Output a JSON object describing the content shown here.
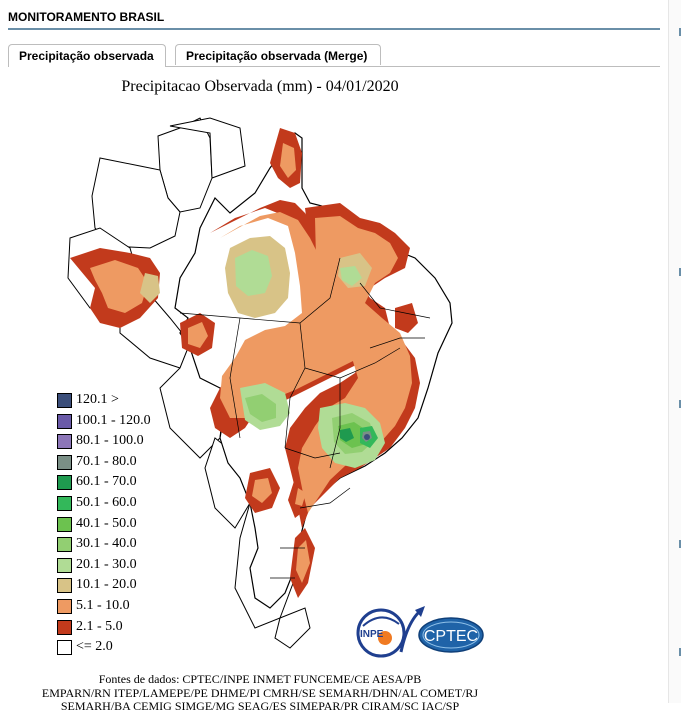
{
  "header": {
    "title": "MONITORAMENTO BRASIL"
  },
  "tabs": [
    {
      "label": "Precipitação observada",
      "active": true
    },
    {
      "label": "Precipitação observada (Merge)",
      "active": false
    }
  ],
  "map": {
    "title": "Precipitacao Observada (mm) - 04/01/2020"
  },
  "legend": {
    "items": [
      {
        "label": "120.1 >",
        "color": "#3b4e7a"
      },
      {
        "label": "100.1 - 120.0",
        "color": "#6a5aa8"
      },
      {
        "label": "80.1 - 100.0",
        "color": "#8c76b8"
      },
      {
        "label": "70.1 - 80.0",
        "color": "#7a8f86"
      },
      {
        "label": "60.1 - 70.0",
        "color": "#1f9a4f"
      },
      {
        "label": "50.1 - 60.0",
        "color": "#33b85a"
      },
      {
        "label": "40.1 - 50.0",
        "color": "#6cc24f"
      },
      {
        "label": "30.1 - 40.0",
        "color": "#92cf72"
      },
      {
        "label": "20.1 - 30.0",
        "color": "#b0dc95"
      },
      {
        "label": "10.1 - 20.0",
        "color": "#d8c387"
      },
      {
        "label": "5.1 - 10.0",
        "color": "#ee9a62"
      },
      {
        "label": "2.1 - 5.0",
        "color": "#c23a1c"
      },
      {
        "label": "<= 2.0",
        "color": "#ffffff"
      }
    ]
  },
  "logos": {
    "inpe": "INPE",
    "cptec": "CPTEC"
  },
  "sources": {
    "lines": [
      "Fontes de dados: CPTEC/INPE INMET FUNCEME/CE AESA/PB",
      "EMPARN/RN ITEP/LAMEPE/PE DHME/PI CMRH/SE SEMARH/DHN/AL COMET/RJ",
      "SEMARH/BA CEMIG SIMGE/MG SEAG/ES SIMEPAR/PR CIRAM/SC IAC/SP"
    ]
  }
}
